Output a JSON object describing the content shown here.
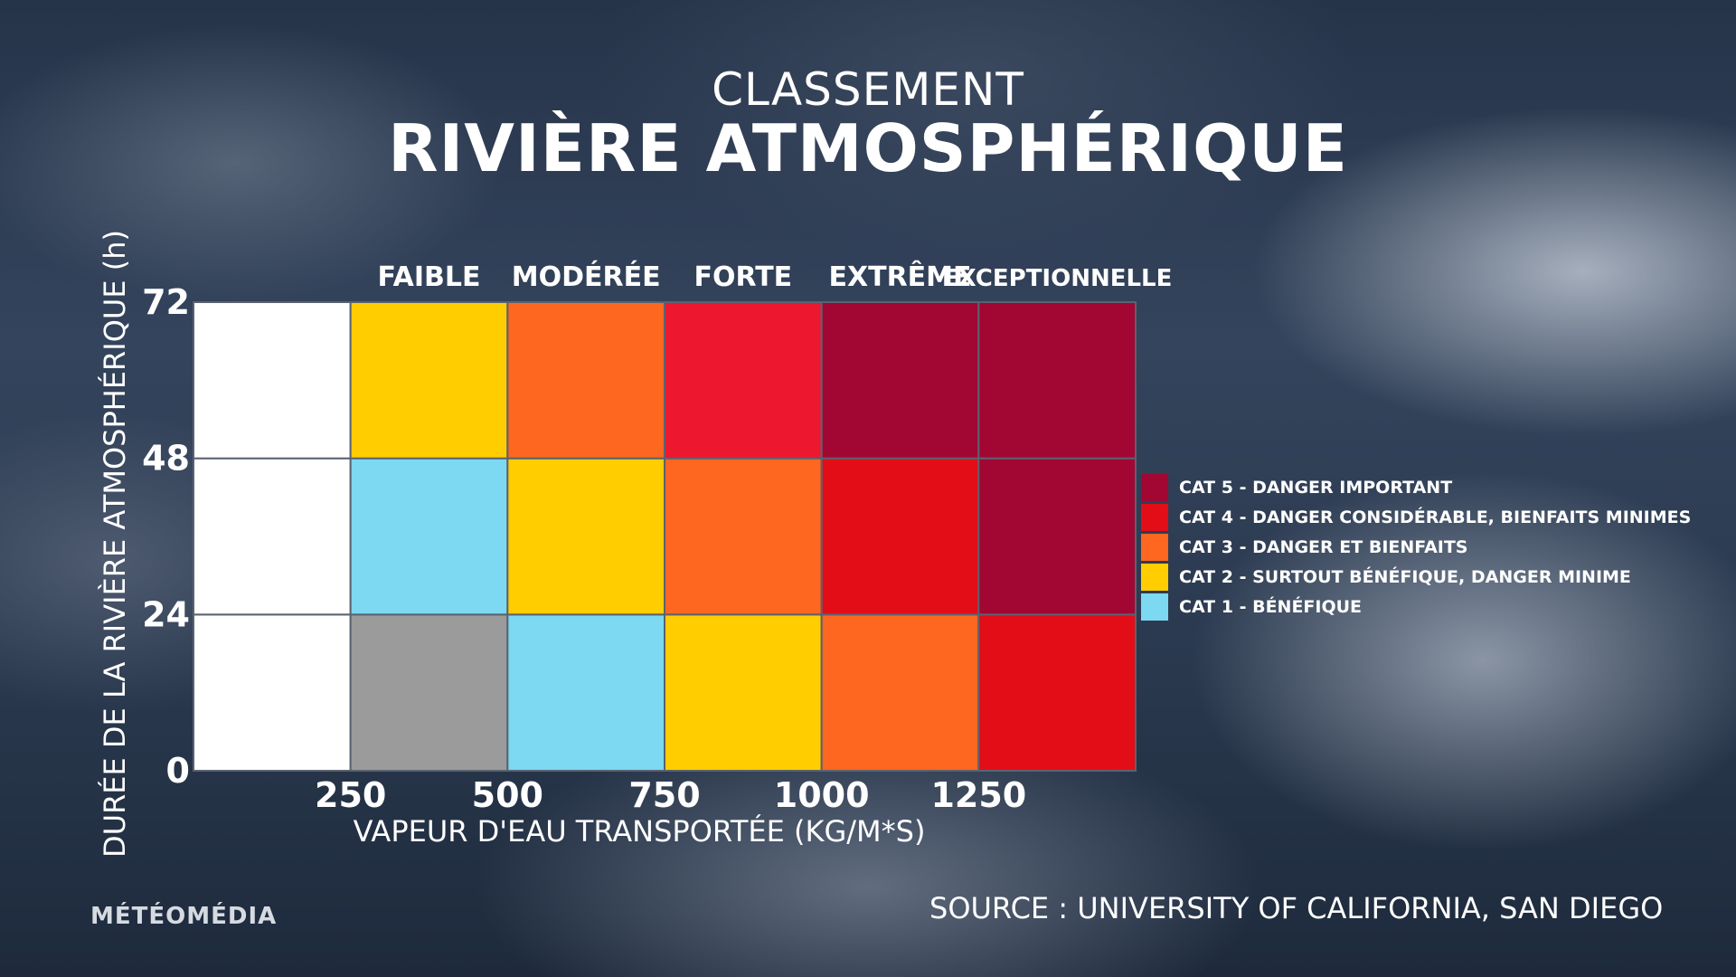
{
  "header": {
    "title_top": "CLASSEMENT",
    "title_main": "RIVIÈRE ATMOSPHÉRIQUE"
  },
  "chart_data": {
    "type": "heatmap",
    "xlabel": "VAPEUR D'EAU TRANSPORTÉE (KG/M*S)",
    "ylabel": "DURÉE DE LA RIVIÈRE ATMOSPHÉRIQUE (h)",
    "x_edges": [
      0,
      250,
      500,
      750,
      1000,
      1250,
      1500
    ],
    "x_tick_labels": [
      "250",
      "500",
      "750",
      "1000",
      "1250"
    ],
    "x_tick_values": [
      250,
      500,
      750,
      1000,
      1250
    ],
    "y_edges": [
      0,
      24,
      48,
      72
    ],
    "y_tick_labels": [
      "0",
      "24",
      "48",
      "72"
    ],
    "ylim": [
      0,
      72
    ],
    "column_headers": [
      "FAIBLE",
      "MODÉRÉE",
      "FORTE",
      "EXTRÊME",
      "EXCEPTIONNELLE"
    ],
    "cells": [
      [
        null,
        null,
        1,
        2,
        3,
        4
      ],
      [
        null,
        1,
        2,
        3,
        4,
        5
      ],
      [
        null,
        2,
        3,
        4,
        5,
        5
      ]
    ],
    "category_colors": {
      "none_white": "#ffffff",
      "none_gray": "#9b9b9c",
      "1": "#7dd8f1",
      "2": "#ffcd00",
      "3": "#fd6720",
      "4": "#e30d18",
      "5": "#a10732"
    },
    "cell_overrides": [
      {
        "row": 2,
        "col": 3,
        "color": "#ee1730"
      },
      {
        "row": 0,
        "col": 1,
        "color": "#9b9b9c"
      }
    ]
  },
  "legend": [
    {
      "label": "CAT 5 - DANGER IMPORTANT",
      "color": "#a10732"
    },
    {
      "label": "CAT 4 - DANGER CONSIDÉRABLE, BIENFAITS MINIMES",
      "color": "#e30d18"
    },
    {
      "label": "CAT 3 - DANGER ET BIENFAITS",
      "color": "#fd6720"
    },
    {
      "label": "CAT 2 - SURTOUT BÉNÉFIQUE, DANGER MINIME",
      "color": "#ffcd00"
    },
    {
      "label": "CAT 1 - BÉNÉFIQUE",
      "color": "#7dd8f1"
    }
  ],
  "footer": {
    "brand": "MÉTÉOMÉDIA",
    "source": "SOURCE : UNIVERSITY OF CALIFORNIA, SAN DIEGO"
  }
}
